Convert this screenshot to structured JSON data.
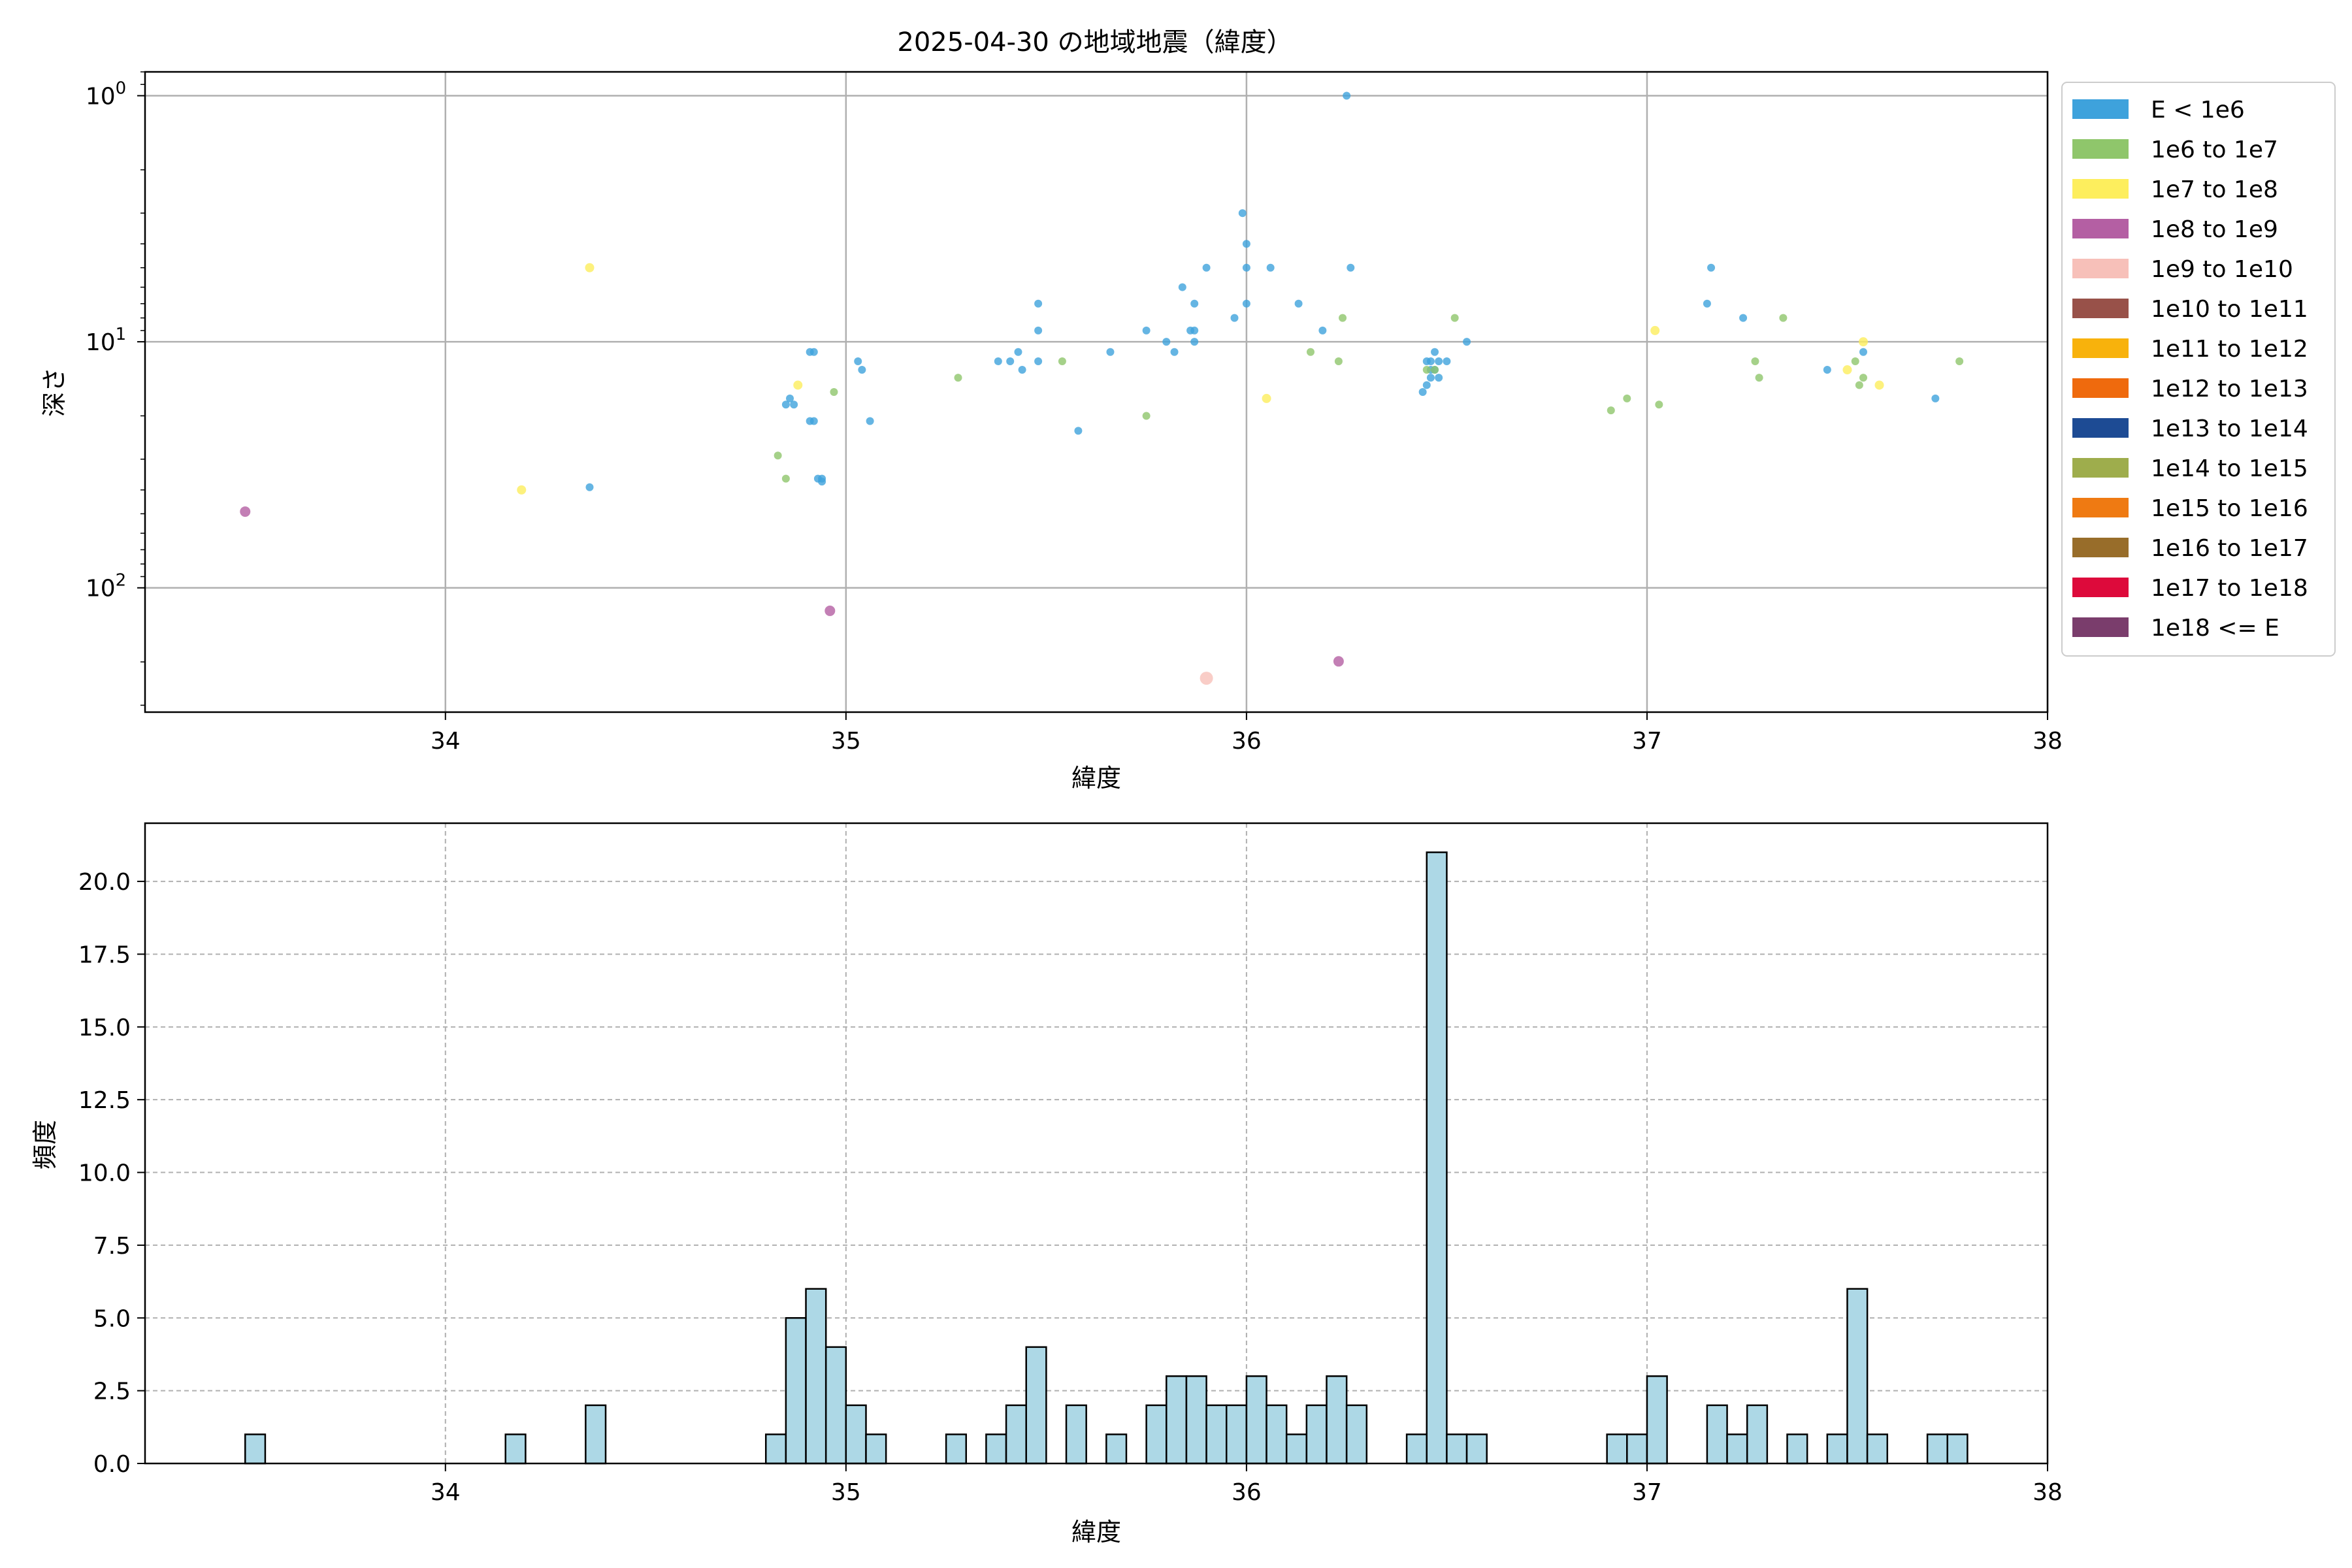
{
  "chart_data": [
    {
      "type": "scatter",
      "title": "2025-04-30 の地域地震（緯度）",
      "xlabel": "緯度",
      "ylabel": "深さ",
      "xlim": [
        33.25,
        38.0
      ],
      "ylim": [
        320,
        0.8
      ],
      "yscale": "log",
      "y_inverted": true,
      "grid": true,
      "x_ticks": [
        34,
        35,
        36,
        37,
        38
      ],
      "y_ticks": [
        {
          "value": 1,
          "label": "10",
          "exp": "0"
        },
        {
          "value": 10,
          "label": "10",
          "exp": "1"
        },
        {
          "value": 100,
          "label": "10",
          "exp": "2"
        }
      ],
      "legend": {
        "placement": "outside-right",
        "entries": [
          {
            "label": "E < 1e6",
            "color": "#3ea2dc"
          },
          {
            "label": "1e6 to 1e7",
            "color": "#8fc66b"
          },
          {
            "label": "1e7 to 1e8",
            "color": "#fdee5d"
          },
          {
            "label": "1e8 to 1e9",
            "color": "#b45fa3"
          },
          {
            "label": "1e9 to 1e10",
            "color": "#f7c0b9"
          },
          {
            "label": "1e10 to 1e11",
            "color": "#985149"
          },
          {
            "label": "1e11 to 1e12",
            "color": "#f8b20c"
          },
          {
            "label": "1e12 to 1e13",
            "color": "#ef6a0d"
          },
          {
            "label": "1e13 to 1e14",
            "color": "#1d4b94"
          },
          {
            "label": "1e14 to 1e15",
            "color": "#9ead4c"
          },
          {
            "label": "1e15 to 1e16",
            "color": "#ef7a12"
          },
          {
            "label": "1e16 to 1e17",
            "color": "#986d2a"
          },
          {
            "label": "1e17 to 1e18",
            "color": "#dd0a3b"
          },
          {
            "label": "1e18 <= E",
            "color": "#7a3d6c"
          }
        ]
      },
      "series": [
        {
          "class": 0,
          "points": [
            [
              36.25,
              1.0
            ],
            [
              35.99,
              3.0
            ],
            [
              36.0,
              4.0
            ],
            [
              35.9,
              5.0
            ],
            [
              36.0,
              5.0
            ],
            [
              36.06,
              5.0
            ],
            [
              36.26,
              5.0
            ],
            [
              37.16,
              5.0
            ],
            [
              35.84,
              6.0
            ],
            [
              36.0,
              7.0
            ],
            [
              35.48,
              7.0
            ],
            [
              36.13,
              7.0
            ],
            [
              35.87,
              7.0
            ],
            [
              37.15,
              7.0
            ],
            [
              35.97,
              8.0
            ],
            [
              37.24,
              8.0
            ],
            [
              35.48,
              9.0
            ],
            [
              35.75,
              9.0
            ],
            [
              35.86,
              9.0
            ],
            [
              35.87,
              9.0
            ],
            [
              36.19,
              9.0
            ],
            [
              35.8,
              10.0
            ],
            [
              36.55,
              10.0
            ],
            [
              34.92,
              11.0
            ],
            [
              34.91,
              11.0
            ],
            [
              35.43,
              11.0
            ],
            [
              35.66,
              11.0
            ],
            [
              35.82,
              11.0
            ],
            [
              36.47,
              11.0
            ],
            [
              37.54,
              11.0
            ],
            [
              35.38,
              12.0
            ],
            [
              35.41,
              12.0
            ],
            [
              35.48,
              12.0
            ],
            [
              36.45,
              12.0
            ],
            [
              36.5,
              12.0
            ],
            [
              35.03,
              12.0
            ],
            [
              36.46,
              12.0
            ],
            [
              35.44,
              13.0
            ],
            [
              35.04,
              13.0
            ],
            [
              37.45,
              13.0
            ],
            [
              36.48,
              14.0
            ],
            [
              36.46,
              14.0
            ],
            [
              36.45,
              15.0
            ],
            [
              36.44,
              16.0
            ],
            [
              37.72,
              17.0
            ],
            [
              34.86,
              17.0
            ],
            [
              34.85,
              18.0
            ],
            [
              34.87,
              18.0
            ],
            [
              34.91,
              21.0
            ],
            [
              34.92,
              21.0
            ],
            [
              35.06,
              21.0
            ],
            [
              35.58,
              23.0
            ],
            [
              34.93,
              36.0
            ],
            [
              34.94,
              37.0
            ],
            [
              34.36,
              39.0
            ],
            [
              34.94,
              36.0
            ],
            [
              36.47,
              13.0
            ],
            [
              35.87,
              10.0
            ],
            [
              36.46,
              13.0
            ],
            [
              36.48,
              12.0
            ]
          ]
        },
        {
          "class": 1,
          "points": [
            [
              36.24,
              8.0
            ],
            [
              36.52,
              8.0
            ],
            [
              37.34,
              8.0
            ],
            [
              36.16,
              11.0
            ],
            [
              35.54,
              12.0
            ],
            [
              36.23,
              12.0
            ],
            [
              37.27,
              12.0
            ],
            [
              37.78,
              12.0
            ],
            [
              37.52,
              12.0
            ],
            [
              35.28,
              14.0
            ],
            [
              37.28,
              14.0
            ],
            [
              37.54,
              14.0
            ],
            [
              37.53,
              15.0
            ],
            [
              34.97,
              16.0
            ],
            [
              36.95,
              17.0
            ],
            [
              37.03,
              18.0
            ],
            [
              36.91,
              19.0
            ],
            [
              35.75,
              20.0
            ],
            [
              34.83,
              29.0
            ],
            [
              34.85,
              36.0
            ],
            [
              36.45,
              13.0
            ],
            [
              36.47,
              13.0
            ]
          ]
        },
        {
          "class": 2,
          "points": [
            [
              34.36,
              5.0
            ],
            [
              37.02,
              9.0
            ],
            [
              37.54,
              10.0
            ],
            [
              37.5,
              13.0
            ],
            [
              34.88,
              15.0
            ],
            [
              37.58,
              15.0
            ],
            [
              36.05,
              17.0
            ],
            [
              34.19,
              40.0
            ]
          ]
        },
        {
          "class": 3,
          "points": [
            [
              33.5,
              49.0
            ],
            [
              34.96,
              124.0
            ],
            [
              36.23,
              199.0
            ]
          ]
        },
        {
          "class": 4,
          "points": [
            [
              35.9,
              233.0
            ]
          ]
        }
      ]
    },
    {
      "type": "bar",
      "xlabel": "緯度",
      "ylabel": "頻度",
      "xlim": [
        33.25,
        38.0
      ],
      "ylim": [
        0,
        22
      ],
      "grid": true,
      "bin_width": 0.05,
      "x_ticks": [
        34,
        35,
        36,
        37,
        38
      ],
      "y_ticks": [
        {
          "value": 0,
          "label": "0.0"
        },
        {
          "value": 2.5,
          "label": "2.5"
        },
        {
          "value": 5,
          "label": "5.0"
        },
        {
          "value": 7.5,
          "label": "7.5"
        },
        {
          "value": 10,
          "label": "10.0"
        },
        {
          "value": 12.5,
          "label": "12.5"
        },
        {
          "value": 15,
          "label": "15.0"
        },
        {
          "value": 17.5,
          "label": "17.5"
        },
        {
          "value": 20,
          "label": "20.0"
        }
      ],
      "bins": [
        [
          33.5,
          1
        ],
        [
          34.15,
          1
        ],
        [
          34.35,
          2
        ],
        [
          34.8,
          1
        ],
        [
          34.85,
          5
        ],
        [
          34.9,
          6
        ],
        [
          34.95,
          4
        ],
        [
          35.0,
          2
        ],
        [
          35.05,
          1
        ],
        [
          35.25,
          1
        ],
        [
          35.35,
          1
        ],
        [
          35.4,
          2
        ],
        [
          35.45,
          4
        ],
        [
          35.55,
          2
        ],
        [
          35.65,
          1
        ],
        [
          35.75,
          2
        ],
        [
          35.8,
          3
        ],
        [
          35.85,
          3
        ],
        [
          35.9,
          2
        ],
        [
          35.95,
          2
        ],
        [
          36.0,
          3
        ],
        [
          36.05,
          2
        ],
        [
          36.1,
          1
        ],
        [
          36.15,
          2
        ],
        [
          36.2,
          3
        ],
        [
          36.25,
          2
        ],
        [
          36.4,
          1
        ],
        [
          36.45,
          21
        ],
        [
          36.5,
          1
        ],
        [
          36.55,
          1
        ],
        [
          36.9,
          1
        ],
        [
          36.95,
          1
        ],
        [
          37.0,
          3
        ],
        [
          37.15,
          2
        ],
        [
          37.2,
          1
        ],
        [
          37.25,
          2
        ],
        [
          37.35,
          1
        ],
        [
          37.45,
          1
        ],
        [
          37.5,
          6
        ],
        [
          37.55,
          1
        ],
        [
          37.7,
          1
        ],
        [
          37.75,
          1
        ]
      ]
    }
  ]
}
